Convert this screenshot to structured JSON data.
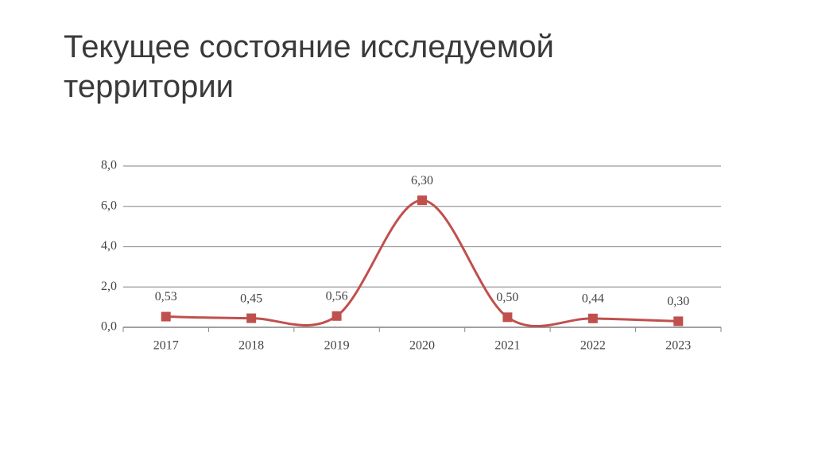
{
  "chart_data": {
    "type": "line",
    "title": "Текущее состояние исследуемой территории",
    "categories": [
      "2017",
      "2018",
      "2019",
      "2020",
      "2021",
      "2022",
      "2023"
    ],
    "series": [
      {
        "color": "#c0504d",
        "values": [
          0.53,
          0.45,
          0.56,
          6.3,
          0.5,
          0.44,
          0.3
        ],
        "value_labels": [
          "0,53",
          "0,45",
          "0,56",
          "6,30",
          "0,50",
          "0,44",
          "0,30"
        ]
      }
    ],
    "ylim": [
      0,
      8
    ],
    "yticks": [
      {
        "value": 0,
        "label": "0,0"
      },
      {
        "value": 2,
        "label": "2,0"
      },
      {
        "value": 4,
        "label": "4,0"
      },
      {
        "value": 6,
        "label": "6,0"
      },
      {
        "value": 8,
        "label": "8,0"
      }
    ],
    "grid": true,
    "smooth": true
  }
}
